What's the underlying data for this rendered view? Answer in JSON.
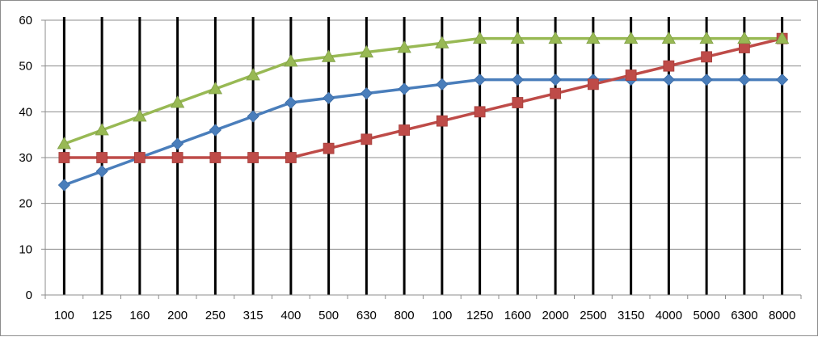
{
  "chart_data": {
    "type": "line",
    "title": "",
    "xlabel": "",
    "ylabel": "",
    "categories": [
      "100",
      "125",
      "160",
      "200",
      "250",
      "315",
      "400",
      "500",
      "630",
      "800",
      "100",
      "1250",
      "1600",
      "2000",
      "2500",
      "3150",
      "4000",
      "5000",
      "6300",
      "8000"
    ],
    "ylim": [
      0,
      60
    ],
    "yticks": [
      "0",
      "10",
      "20",
      "30",
      "40",
      "50",
      "60"
    ],
    "grid": {
      "horizontal": true,
      "vertical_category_lines": true
    },
    "legend": "none",
    "series": [
      {
        "color": "#4a7ebb",
        "marker": "diamond",
        "values": [
          24,
          27,
          30,
          33,
          36,
          39,
          42,
          43,
          44,
          45,
          46,
          47,
          47,
          47,
          47,
          47,
          47,
          47,
          47,
          47
        ]
      },
      {
        "color": "#be4b48",
        "marker": "square",
        "values": [
          30,
          30,
          30,
          30,
          30,
          30,
          30,
          32,
          34,
          36,
          38,
          40,
          42,
          44,
          46,
          48,
          50,
          52,
          54,
          56
        ]
      },
      {
        "color": "#98b954",
        "marker": "triangle",
        "values": [
          33,
          36,
          39,
          42,
          45,
          48,
          51,
          52,
          53,
          54,
          55,
          56,
          56,
          56,
          56,
          56,
          56,
          56,
          56,
          56
        ]
      }
    ]
  }
}
